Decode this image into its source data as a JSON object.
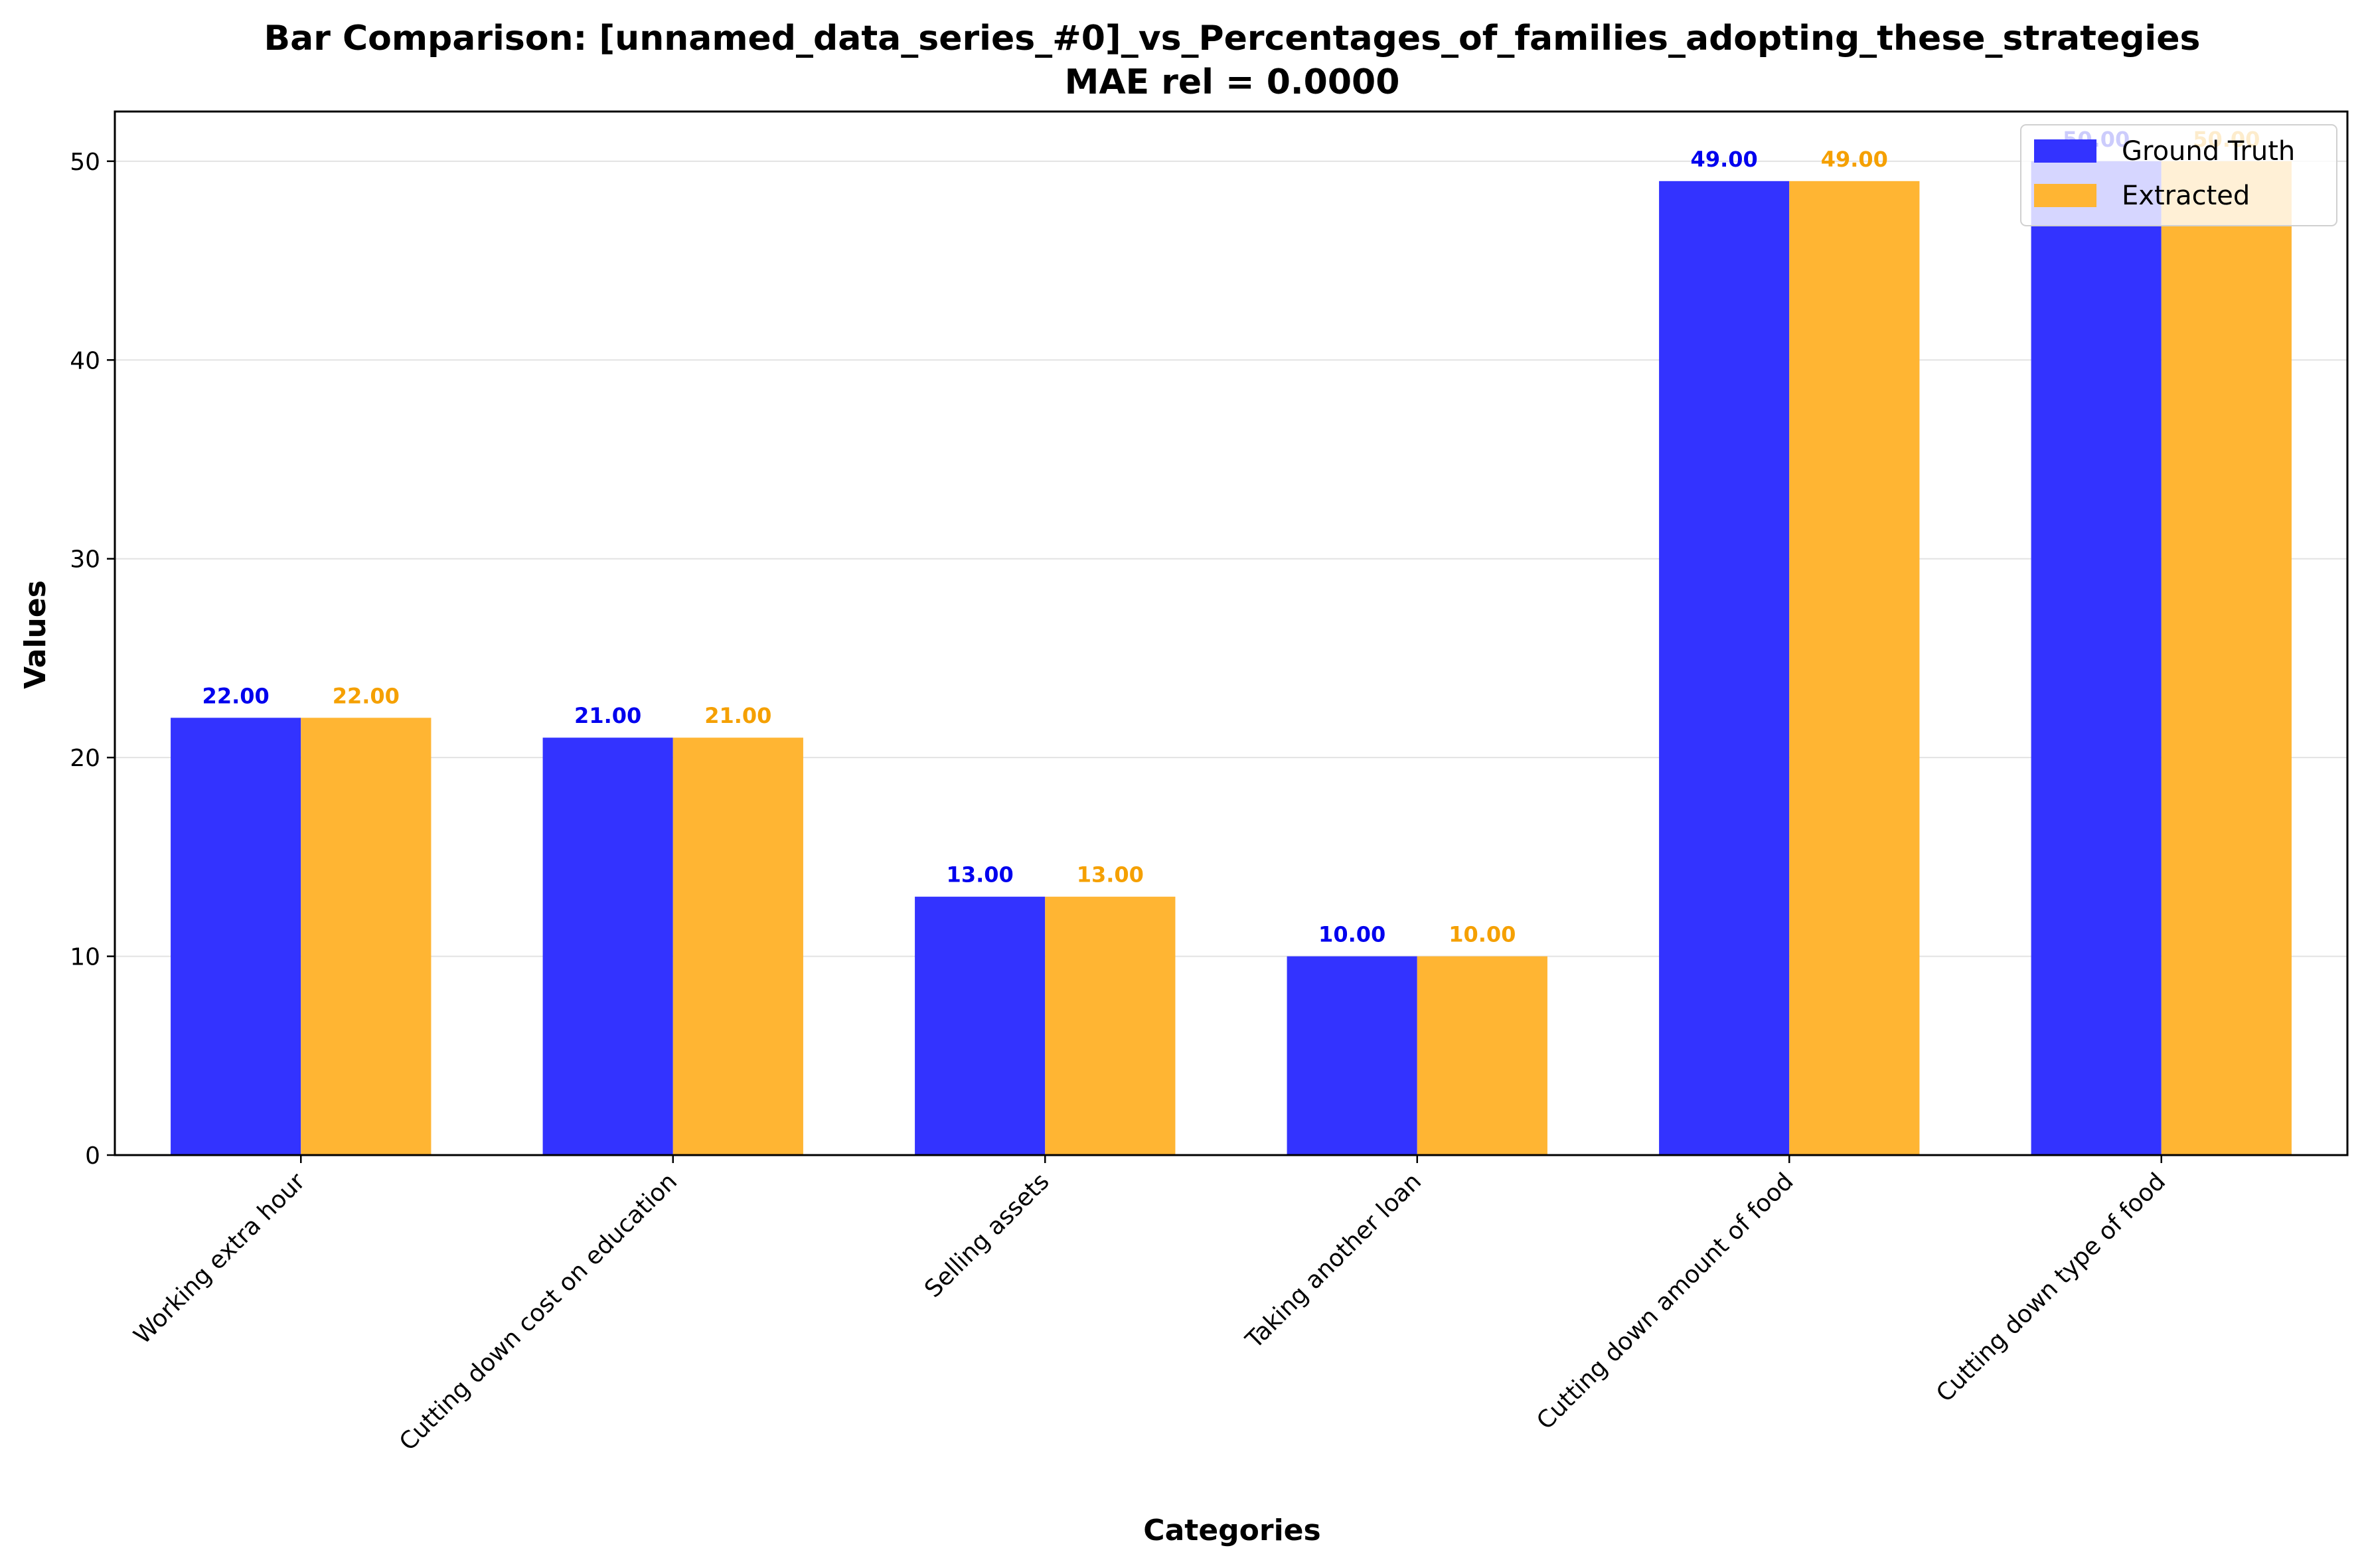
{
  "chart_data": {
    "type": "bar",
    "title": "Bar Comparison: [unnamed_data_series_#0]_vs_Percentages_of_families_adopting_these_strategies",
    "subtitle": "MAE rel = 0.0000",
    "xlabel": "Categories",
    "ylabel": "Values",
    "ylim": [
      0,
      52.5
    ],
    "yticks": [
      0,
      10,
      20,
      30,
      40,
      50
    ],
    "grid": "horizontal",
    "legend_position": "top-right",
    "categories": [
      "Working extra hour",
      "Cutting down cost on education",
      "Selling assets",
      "Taking another loan",
      "Cutting down amount of food",
      "Cutting down type of food"
    ],
    "series": [
      {
        "name": "Ground Truth",
        "color": "#3333ff",
        "label_color": "#0000ee",
        "values": [
          22,
          21,
          13,
          10,
          49,
          50
        ]
      },
      {
        "name": "Extracted",
        "color": "#ffb533",
        "label_color": "#f5a000",
        "values": [
          22,
          21,
          13,
          10,
          49,
          50
        ]
      }
    ]
  }
}
